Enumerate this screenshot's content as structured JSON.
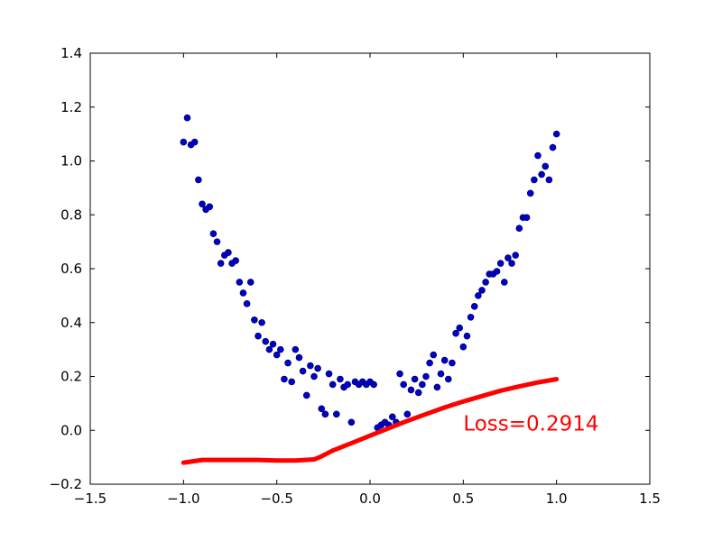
{
  "figure": {
    "background": "#ffffff",
    "frame_color": "#000000"
  },
  "chart_data": {
    "type": "scatter",
    "title": "",
    "xlabel": "",
    "ylabel": "",
    "grid": false,
    "legend": false,
    "xlim": [
      -1.5,
      1.5
    ],
    "ylim": [
      -0.2,
      1.4
    ],
    "x_tick_values": [
      -1.5,
      -1.0,
      -0.5,
      0.0,
      0.5,
      1.0,
      1.5
    ],
    "x_tick_labels": [
      "−1.5",
      "−1.0",
      "−0.5",
      "0.0",
      "0.5",
      "1.0",
      "1.5"
    ],
    "y_tick_values": [
      -0.2,
      0.0,
      0.2,
      0.4,
      0.6,
      0.8,
      1.0,
      1.2,
      1.4
    ],
    "y_tick_labels": [
      "−0.2",
      "0.0",
      "0.2",
      "0.4",
      "0.6",
      "0.8",
      "1.0",
      "1.2",
      "1.4"
    ],
    "series": [
      {
        "name": "training-data-scatter",
        "type": "scatter",
        "color": "#0000cc",
        "edge_color": "#000066",
        "marker_radius": 3.4,
        "points": [
          [
            -1.0,
            1.07
          ],
          [
            -0.98,
            1.16
          ],
          [
            -0.96,
            1.06
          ],
          [
            -0.94,
            1.07
          ],
          [
            -0.92,
            0.93
          ],
          [
            -0.9,
            0.84
          ],
          [
            -0.88,
            0.82
          ],
          [
            -0.86,
            0.83
          ],
          [
            -0.84,
            0.73
          ],
          [
            -0.82,
            0.7
          ],
          [
            -0.8,
            0.62
          ],
          [
            -0.78,
            0.65
          ],
          [
            -0.76,
            0.66
          ],
          [
            -0.74,
            0.62
          ],
          [
            -0.72,
            0.63
          ],
          [
            -0.7,
            0.55
          ],
          [
            -0.68,
            0.51
          ],
          [
            -0.66,
            0.47
          ],
          [
            -0.64,
            0.55
          ],
          [
            -0.62,
            0.41
          ],
          [
            -0.6,
            0.35
          ],
          [
            -0.58,
            0.4
          ],
          [
            -0.56,
            0.33
          ],
          [
            -0.54,
            0.3
          ],
          [
            -0.52,
            0.32
          ],
          [
            -0.5,
            0.28
          ],
          [
            -0.48,
            0.3
          ],
          [
            -0.46,
            0.19
          ],
          [
            -0.44,
            0.25
          ],
          [
            -0.42,
            0.18
          ],
          [
            -0.4,
            0.3
          ],
          [
            -0.38,
            0.27
          ],
          [
            -0.36,
            0.22
          ],
          [
            -0.34,
            0.13
          ],
          [
            -0.32,
            0.24
          ],
          [
            -0.3,
            0.2
          ],
          [
            -0.28,
            0.23
          ],
          [
            -0.26,
            0.08
          ],
          [
            -0.24,
            0.06
          ],
          [
            -0.22,
            0.21
          ],
          [
            -0.2,
            0.17
          ],
          [
            -0.18,
            0.06
          ],
          [
            -0.16,
            0.19
          ],
          [
            -0.14,
            0.16
          ],
          [
            -0.12,
            0.17
          ],
          [
            -0.1,
            0.03
          ],
          [
            -0.08,
            0.18
          ],
          [
            -0.06,
            0.17
          ],
          [
            -0.04,
            0.18
          ],
          [
            -0.02,
            0.17
          ],
          [
            0.0,
            0.18
          ],
          [
            0.02,
            0.17
          ],
          [
            0.04,
            0.01
          ],
          [
            0.06,
            0.02
          ],
          [
            0.08,
            0.03
          ],
          [
            0.1,
            0.02
          ],
          [
            0.12,
            0.05
          ],
          [
            0.14,
            0.03
          ],
          [
            0.16,
            0.21
          ],
          [
            0.18,
            0.17
          ],
          [
            0.2,
            0.06
          ],
          [
            0.22,
            0.15
          ],
          [
            0.24,
            0.19
          ],
          [
            0.26,
            0.14
          ],
          [
            0.28,
            0.17
          ],
          [
            0.3,
            0.2
          ],
          [
            0.32,
            0.25
          ],
          [
            0.34,
            0.28
          ],
          [
            0.36,
            0.16
          ],
          [
            0.38,
            0.21
          ],
          [
            0.4,
            0.26
          ],
          [
            0.42,
            0.19
          ],
          [
            0.44,
            0.25
          ],
          [
            0.46,
            0.36
          ],
          [
            0.48,
            0.38
          ],
          [
            0.5,
            0.31
          ],
          [
            0.52,
            0.35
          ],
          [
            0.54,
            0.42
          ],
          [
            0.56,
            0.46
          ],
          [
            0.58,
            0.5
          ],
          [
            0.6,
            0.52
          ],
          [
            0.62,
            0.55
          ],
          [
            0.64,
            0.58
          ],
          [
            0.66,
            0.58
          ],
          [
            0.68,
            0.59
          ],
          [
            0.7,
            0.62
          ],
          [
            0.72,
            0.55
          ],
          [
            0.74,
            0.64
          ],
          [
            0.76,
            0.62
          ],
          [
            0.78,
            0.65
          ],
          [
            0.8,
            0.75
          ],
          [
            0.82,
            0.79
          ],
          [
            0.84,
            0.79
          ],
          [
            0.86,
            0.88
          ],
          [
            0.88,
            0.93
          ],
          [
            0.9,
            1.02
          ],
          [
            0.92,
            0.95
          ],
          [
            0.94,
            0.98
          ],
          [
            0.96,
            0.93
          ],
          [
            0.98,
            1.05
          ],
          [
            1.0,
            1.1
          ]
        ]
      },
      {
        "name": "model-fit-line",
        "type": "line",
        "color": "#ff0000",
        "width": 5,
        "points": [
          [
            -1.0,
            -0.12
          ],
          [
            -0.95,
            -0.115
          ],
          [
            -0.9,
            -0.11
          ],
          [
            -0.8,
            -0.11
          ],
          [
            -0.7,
            -0.11
          ],
          [
            -0.6,
            -0.11
          ],
          [
            -0.5,
            -0.112
          ],
          [
            -0.4,
            -0.112
          ],
          [
            -0.3,
            -0.108
          ],
          [
            -0.27,
            -0.1
          ],
          [
            -0.2,
            -0.075
          ],
          [
            -0.1,
            -0.048
          ],
          [
            0.0,
            -0.02
          ],
          [
            0.1,
            0.008
          ],
          [
            0.2,
            0.035
          ],
          [
            0.3,
            0.06
          ],
          [
            0.4,
            0.085
          ],
          [
            0.5,
            0.107
          ],
          [
            0.6,
            0.127
          ],
          [
            0.7,
            0.147
          ],
          [
            0.8,
            0.163
          ],
          [
            0.9,
            0.178
          ],
          [
            1.0,
            0.19
          ]
        ]
      }
    ],
    "annotation": {
      "text": "Loss=0.2914",
      "x": 0.5,
      "y": 0.0,
      "color": "#ff0000",
      "fontsize": 23
    }
  }
}
